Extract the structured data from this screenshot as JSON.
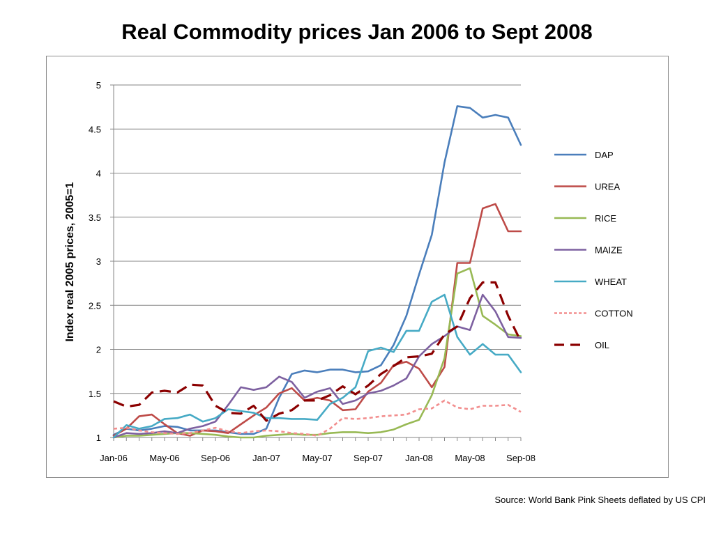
{
  "page": {
    "title": "Real Commodity prices Jan 2006 to Sept 2008",
    "source": "Source: World Bank Pink Sheets deflated by US CPI"
  },
  "chart_data": {
    "type": "line",
    "title": "Real Commodity prices Jan 2006 to Sept 2008",
    "ylabel": "Index real 2005 prices, 2005=1",
    "xlabel": "",
    "ylim": [
      1,
      5
    ],
    "yticks": [
      1,
      1.5,
      2,
      2.5,
      3,
      3.5,
      4,
      4.5,
      5
    ],
    "ytick_labels": [
      "1",
      "1.5",
      "2",
      "2.5",
      "3",
      "3.5",
      "4",
      "4.5",
      "5"
    ],
    "categories": [
      "Jan-06",
      "Feb-06",
      "Mar-06",
      "Apr-06",
      "May-06",
      "Jun-06",
      "Jul-06",
      "Aug-06",
      "Sep-06",
      "Oct-06",
      "Nov-06",
      "Dec-06",
      "Jan-07",
      "Feb-07",
      "Mar-07",
      "Apr-07",
      "May-07",
      "Jun-07",
      "Jul-07",
      "Aug-07",
      "Sep-07",
      "Oct-07",
      "Nov-07",
      "Dec-07",
      "Jan-08",
      "Feb-08",
      "Mar-08",
      "Apr-08",
      "May-08",
      "Jun-08",
      "Jul-08",
      "Aug-08",
      "Sep-08"
    ],
    "xtick_labels": [
      {
        "index": 0,
        "label": "Jan-06"
      },
      {
        "index": 4,
        "label": "May-06"
      },
      {
        "index": 8,
        "label": "Sep-06"
      },
      {
        "index": 12,
        "label": "Jan-07"
      },
      {
        "index": 16,
        "label": "May-07"
      },
      {
        "index": 20,
        "label": "Sep-07"
      },
      {
        "index": 24,
        "label": "Jan-08"
      },
      {
        "index": 28,
        "label": "May-08"
      },
      {
        "index": 32,
        "label": "Sep-08"
      }
    ],
    "grid": "horizontal",
    "legend": "right",
    "series": [
      {
        "name": "DAP",
        "color": "#4a7ebb",
        "dash": "solid",
        "values": [
          1.03,
          1.1,
          1.08,
          1.1,
          1.13,
          1.12,
          1.08,
          1.08,
          1.08,
          1.06,
          1.04,
          1.04,
          1.1,
          1.45,
          1.72,
          1.76,
          1.74,
          1.77,
          1.77,
          1.74,
          1.75,
          1.82,
          2.05,
          2.38,
          2.85,
          3.3,
          4.12,
          4.76,
          4.74,
          4.63,
          4.66,
          4.63,
          4.32
        ]
      },
      {
        "name": "UREA",
        "color": "#be4b48",
        "dash": "solid",
        "values": [
          1.02,
          1.1,
          1.24,
          1.26,
          1.15,
          1.05,
          1.02,
          1.08,
          1.07,
          1.05,
          1.15,
          1.25,
          1.34,
          1.5,
          1.56,
          1.42,
          1.45,
          1.42,
          1.31,
          1.32,
          1.52,
          1.62,
          1.82,
          1.86,
          1.78,
          1.57,
          1.8,
          2.98,
          2.98,
          3.6,
          3.65,
          3.34,
          3.34
        ]
      },
      {
        "name": "RICE",
        "color": "#98b954",
        "dash": "solid",
        "values": [
          1.0,
          1.02,
          1.02,
          1.03,
          1.04,
          1.05,
          1.05,
          1.04,
          1.03,
          1.01,
          1.0,
          1.0,
          1.02,
          1.03,
          1.04,
          1.03,
          1.03,
          1.05,
          1.06,
          1.06,
          1.05,
          1.06,
          1.09,
          1.15,
          1.2,
          1.48,
          1.9,
          2.86,
          2.92,
          2.38,
          2.28,
          2.17,
          2.15
        ]
      },
      {
        "name": "MAIZE",
        "color": "#7d60a0",
        "dash": "solid",
        "values": [
          1.0,
          1.05,
          1.04,
          1.05,
          1.07,
          1.05,
          1.1,
          1.13,
          1.18,
          1.37,
          1.57,
          1.54,
          1.57,
          1.69,
          1.63,
          1.45,
          1.52,
          1.56,
          1.38,
          1.42,
          1.5,
          1.53,
          1.59,
          1.67,
          1.92,
          2.06,
          2.15,
          2.26,
          2.22,
          2.62,
          2.43,
          2.14,
          2.13
        ]
      },
      {
        "name": "WHEAT",
        "color": "#46aac5",
        "dash": "solid",
        "values": [
          1.0,
          1.14,
          1.1,
          1.13,
          1.21,
          1.22,
          1.26,
          1.18,
          1.22,
          1.32,
          1.3,
          1.28,
          1.22,
          1.22,
          1.21,
          1.21,
          1.2,
          1.38,
          1.45,
          1.57,
          1.98,
          2.02,
          1.97,
          2.21,
          2.21,
          2.54,
          2.62,
          2.14,
          1.94,
          2.06,
          1.94,
          1.94,
          1.74
        ]
      },
      {
        "name": "COTTON",
        "color": "#f28e8e",
        "dash": "short",
        "values": [
          1.1,
          1.11,
          1.08,
          1.06,
          1.05,
          1.04,
          1.05,
          1.08,
          1.11,
          1.07,
          1.05,
          1.07,
          1.08,
          1.07,
          1.05,
          1.04,
          1.02,
          1.1,
          1.22,
          1.21,
          1.22,
          1.24,
          1.25,
          1.26,
          1.32,
          1.33,
          1.42,
          1.34,
          1.32,
          1.36,
          1.36,
          1.37,
          1.29
        ]
      },
      {
        "name": "OIL",
        "color": "#8b0000",
        "dash": "long",
        "values": [
          1.41,
          1.35,
          1.37,
          1.51,
          1.53,
          1.51,
          1.6,
          1.59,
          1.36,
          1.28,
          1.27,
          1.36,
          1.19,
          1.27,
          1.31,
          1.42,
          1.42,
          1.48,
          1.58,
          1.49,
          1.59,
          1.72,
          1.81,
          1.91,
          1.92,
          1.95,
          2.17,
          2.26,
          2.58,
          2.76,
          2.76,
          2.38,
          2.09
        ]
      }
    ]
  }
}
